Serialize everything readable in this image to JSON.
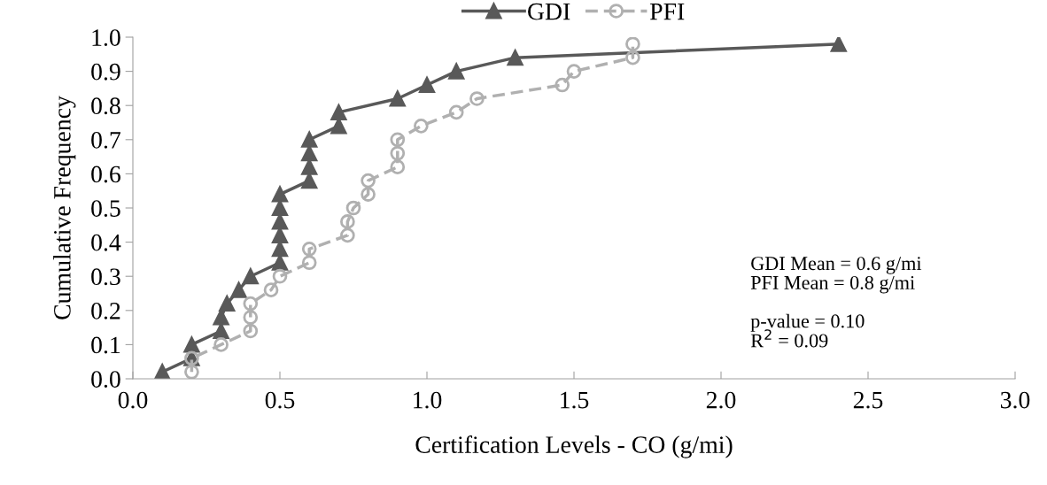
{
  "chart_data": {
    "type": "line",
    "xlabel": "Certification Levels - CO (g/mi)",
    "ylabel": "Cumulative Frequency",
    "xlim": [
      0,
      3
    ],
    "xticks": [
      {
        "value": 0,
        "label": "0.0"
      },
      {
        "value": 0.5,
        "label": "0.5"
      },
      {
        "value": 1,
        "label": "1.0"
      },
      {
        "value": 1.5,
        "label": "1.5"
      },
      {
        "value": 2,
        "label": "2.0"
      },
      {
        "value": 2.5,
        "label": "2.5"
      },
      {
        "value": 3,
        "label": "3.0"
      }
    ],
    "ylim": [
      0,
      1
    ],
    "yticks": [
      {
        "value": 0,
        "label": "0.0"
      },
      {
        "value": 0.1,
        "label": "0.1"
      },
      {
        "value": 0.2,
        "label": "0.2"
      },
      {
        "value": 0.3,
        "label": "0.3"
      },
      {
        "value": 0.4,
        "label": "0.4"
      },
      {
        "value": 0.5,
        "label": "0.5"
      },
      {
        "value": 0.6,
        "label": "0.6"
      },
      {
        "value": 0.7,
        "label": "0.7"
      },
      {
        "value": 0.8,
        "label": "0.8"
      },
      {
        "value": 0.9,
        "label": "0.9"
      },
      {
        "value": 1,
        "label": "1.0"
      }
    ],
    "grid": false,
    "legend": "top",
    "series": [
      {
        "name": "GDI",
        "color": "#595959",
        "marker": "triangle",
        "line_style": "solid",
        "x": [
          0.1,
          0.2,
          0.2,
          0.3,
          0.3,
          0.32,
          0.36,
          0.4,
          0.5,
          0.5,
          0.5,
          0.5,
          0.5,
          0.5,
          0.6,
          0.6,
          0.6,
          0.6,
          0.7,
          0.7,
          0.9,
          1.0,
          1.1,
          1.3,
          2.4
        ],
        "values": [
          0.02,
          0.06,
          0.1,
          0.14,
          0.18,
          0.22,
          0.26,
          0.3,
          0.34,
          0.38,
          0.42,
          0.46,
          0.5,
          0.54,
          0.58,
          0.62,
          0.66,
          0.7,
          0.74,
          0.78,
          0.82,
          0.86,
          0.9,
          0.94,
          0.98
        ]
      },
      {
        "name": "PFI",
        "color": "#b0b0b0",
        "marker": "circle",
        "line_style": "dashed",
        "x": [
          0.2,
          0.2,
          0.3,
          0.4,
          0.4,
          0.4,
          0.47,
          0.5,
          0.6,
          0.6,
          0.73,
          0.73,
          0.75,
          0.8,
          0.8,
          0.9,
          0.9,
          0.9,
          0.98,
          1.1,
          1.17,
          1.46,
          1.5,
          1.7,
          1.7
        ],
        "values": [
          0.02,
          0.06,
          0.1,
          0.14,
          0.18,
          0.22,
          0.26,
          0.3,
          0.34,
          0.38,
          0.42,
          0.46,
          0.5,
          0.54,
          0.58,
          0.62,
          0.66,
          0.7,
          0.74,
          0.78,
          0.82,
          0.86,
          0.9,
          0.94,
          0.98
        ]
      }
    ],
    "annotations": [
      "GDI Mean = 0.6 g/mi\nPFI Mean = 0.8 g/mi\n\np-value = 0.10\nR$^{2}$ = 0.09"
    ]
  }
}
